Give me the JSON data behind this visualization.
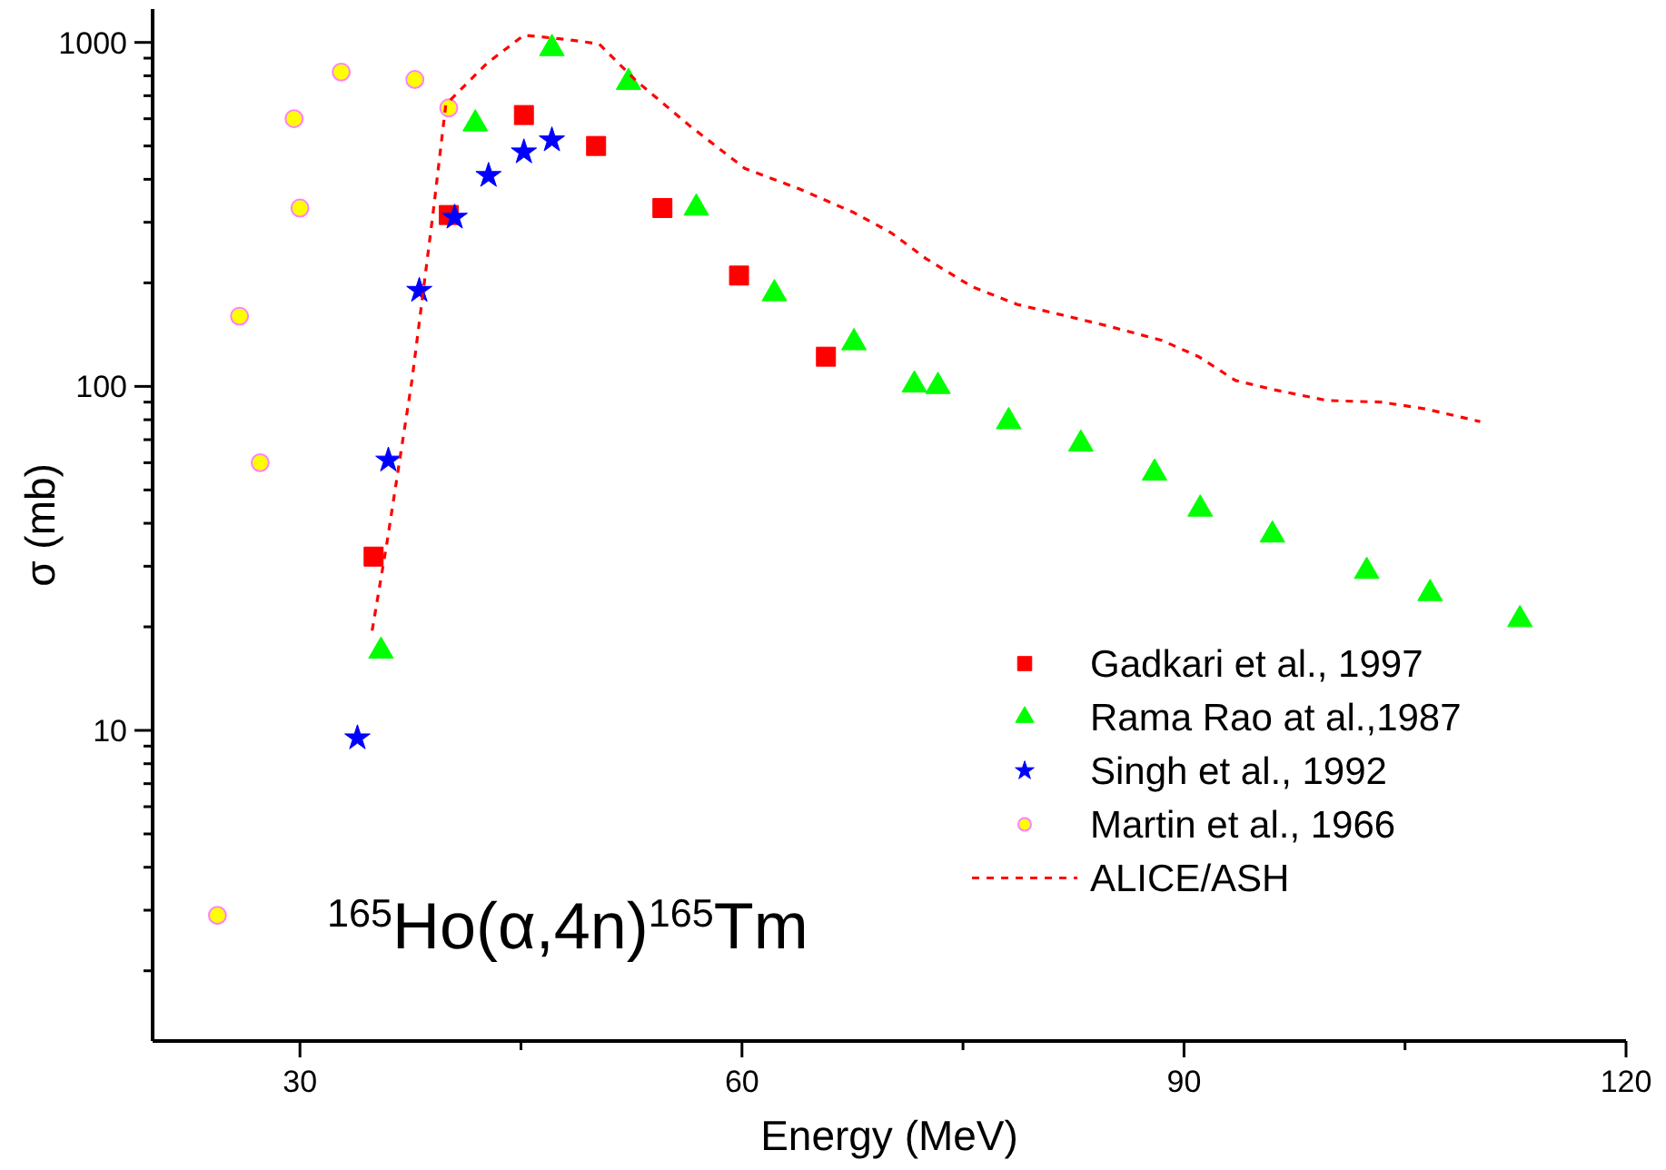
{
  "chart_data": {
    "type": "scatter",
    "xlabel": "Energy (MeV)",
    "ylabel": "σ (mb)",
    "log": "y",
    "grid": false,
    "legend": "bottom right",
    "xlim": [
      20,
      120
    ],
    "ylim": [
      1.25,
      1250
    ],
    "xticks": [
      30,
      {
        "value": 45,
        "label": null
      },
      60,
      {
        "value": 75,
        "label": null
      },
      90,
      {
        "value": 105,
        "label": null
      },
      120
    ],
    "yticks": [
      {
        "value": 2,
        "label": null
      },
      {
        "value": 3,
        "label": null
      },
      {
        "value": 4,
        "label": null
      },
      {
        "value": 5,
        "label": null
      },
      {
        "value": 6,
        "label": null
      },
      {
        "value": 7,
        "label": null
      },
      {
        "value": 8,
        "label": null
      },
      {
        "value": 9,
        "label": null
      },
      10,
      {
        "value": 20,
        "label": null
      },
      {
        "value": 30,
        "label": null
      },
      {
        "value": 40,
        "label": null
      },
      {
        "value": 50,
        "label": null
      },
      {
        "value": 60,
        "label": null
      },
      {
        "value": 70,
        "label": null
      },
      {
        "value": 80,
        "label": null
      },
      {
        "value": 90,
        "label": null
      },
      100,
      {
        "value": 200,
        "label": null
      },
      {
        "value": 300,
        "label": null
      },
      {
        "value": 400,
        "label": null
      },
      {
        "value": 500,
        "label": null
      },
      {
        "value": 600,
        "label": null
      },
      {
        "value": 700,
        "label": null
      },
      {
        "value": 800,
        "label": null
      },
      {
        "value": 900,
        "label": null
      },
      1000
    ],
    "annotations": [
      "$^{165}$Ho(α,4n)$^{165}$Tm"
    ],
    "series": [
      {
        "name": "Gadkari et al., 1997",
        "marker": "square",
        "color": "#ff0000",
        "x": [
          35.0,
          40.1,
          45.2,
          50.1,
          54.6,
          59.8,
          65.7
        ],
        "values": [
          32,
          315,
          615,
          500,
          330,
          210,
          122
        ]
      },
      {
        "name": "Rama Rao at al.,1987",
        "marker": "triangle",
        "color": "#00ff00",
        "x": [
          35.5,
          41.9,
          47.1,
          52.3,
          56.9,
          62.2,
          67.6,
          71.7,
          73.3,
          78.1,
          83.0,
          88.0,
          91.1,
          96.0,
          102.4,
          106.7,
          112.8
        ],
        "values": [
          17,
          580,
          960,
          765,
          330,
          186,
          134,
          101,
          100,
          79,
          68,
          56,
          44,
          37,
          29,
          25,
          21
        ]
      },
      {
        "name": "Singh et al., 1992",
        "marker": "star",
        "color": "#0000ff",
        "x": [
          33.9,
          36.0,
          38.1,
          40.5,
          42.8,
          45.2,
          47.1
        ],
        "values": [
          9.5,
          61,
          190,
          310,
          410,
          480,
          520
        ]
      },
      {
        "name": "Martin et al., 1966",
        "marker": "circle",
        "color": "#ffff00",
        "x": [
          24.4,
          25.9,
          27.3,
          29.6,
          30.0,
          32.8,
          37.8,
          40.1
        ],
        "values": [
          2.9,
          160,
          60,
          600,
          330,
          820,
          780,
          645
        ]
      },
      {
        "name": "ALICE/ASH",
        "type": "line",
        "marker": "none",
        "line_style": "dashed",
        "color": "#ff0000",
        "x": [
          34.9,
          35.9,
          37.6,
          39.0,
          39.9,
          42.7,
          45.2,
          48.1,
          50.3,
          52.8,
          56.5,
          60.2,
          63.9,
          67.6,
          70.1,
          72.5,
          75.6,
          78.7,
          81.8,
          84.8,
          88.5,
          91.0,
          93.5,
          96.0,
          99.7,
          103.4,
          106.4,
          110.1
        ],
        "values": [
          19.5,
          35,
          104,
          310,
          660,
          870,
          1050,
          1020,
          990,
          775,
          570,
          430,
          375,
          320,
          280,
          235,
          195,
          173,
          161,
          150,
          136,
          122,
          104,
          98,
          91,
          90,
          86,
          79
        ]
      }
    ]
  }
}
